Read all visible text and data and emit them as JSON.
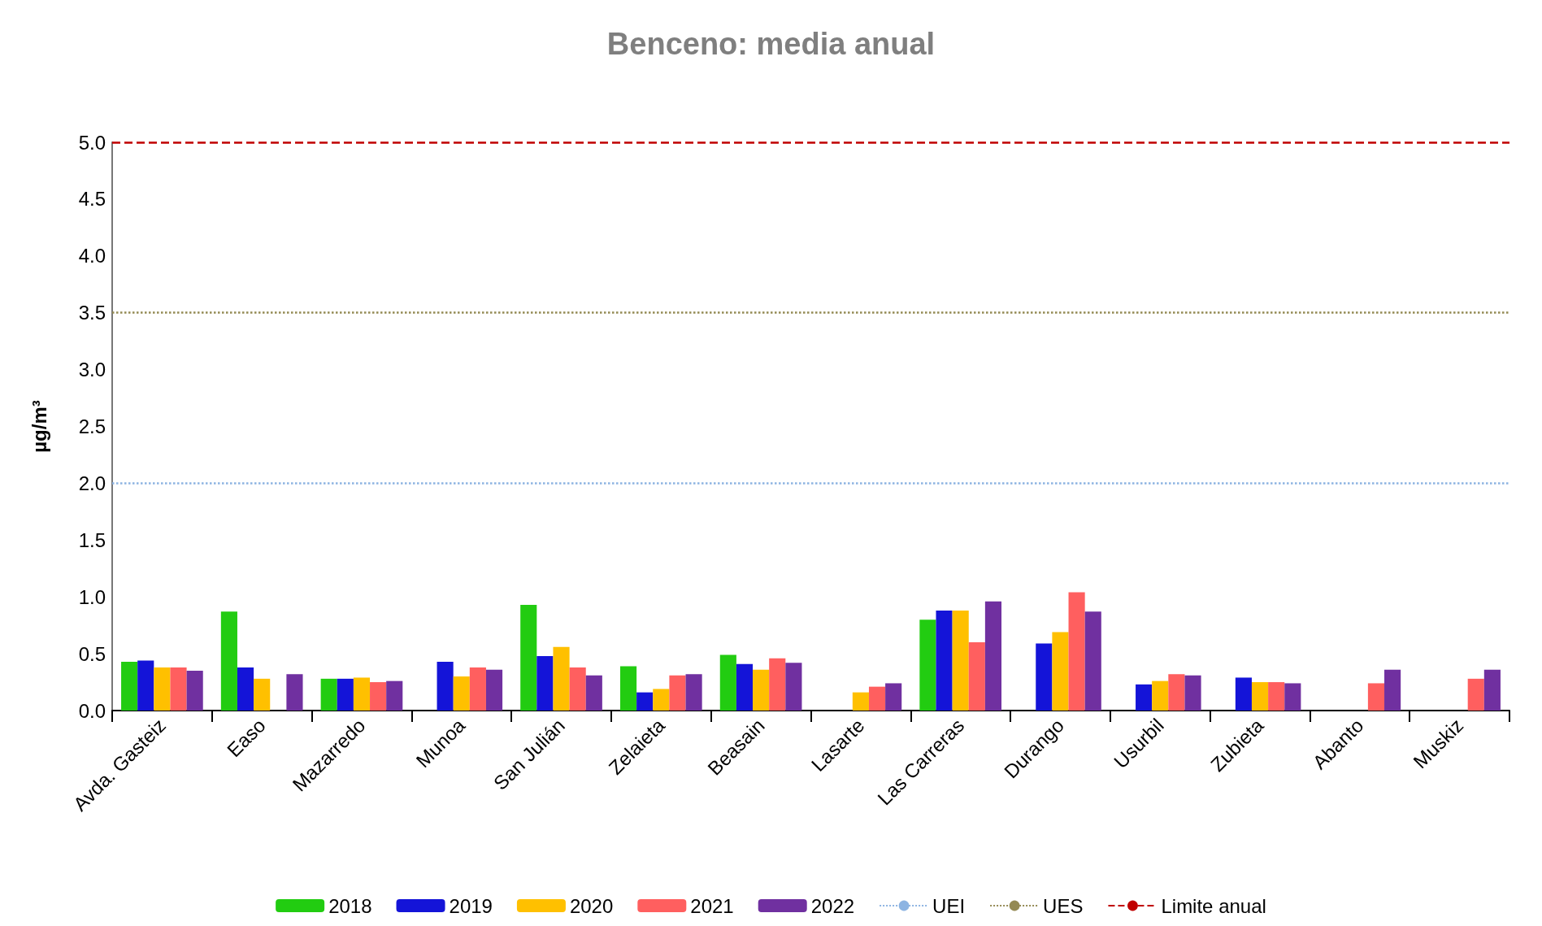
{
  "chart_data": {
    "type": "bar",
    "title": "Benceno: media anual",
    "ylabel": "µg/m³",
    "categories": [
      "Avda. Gasteiz",
      "Easo",
      "Mazarredo",
      "Munoa",
      "San Julián",
      "Zelaieta",
      "Beasain",
      "Lasarte",
      "Las Carreras",
      "Durango",
      "Usurbil",
      "Zubieta",
      "Abanto",
      "Muskiz"
    ],
    "series": [
      {
        "name": "2018",
        "color": "#22cc11",
        "values": [
          0.43,
          0.87,
          0.28,
          null,
          0.93,
          0.39,
          0.49,
          null,
          0.8,
          null,
          null,
          null,
          null,
          null
        ]
      },
      {
        "name": "2019",
        "color": "#1414d8",
        "values": [
          0.44,
          0.38,
          0.28,
          0.43,
          0.48,
          0.16,
          0.41,
          null,
          0.88,
          0.59,
          0.23,
          0.29,
          null,
          null
        ]
      },
      {
        "name": "2020",
        "color": "#ffc000",
        "values": [
          0.38,
          0.28,
          0.29,
          0.3,
          0.56,
          0.19,
          0.36,
          0.16,
          0.88,
          0.69,
          0.26,
          0.25,
          null,
          null
        ]
      },
      {
        "name": "2021",
        "color": "#ff5f5f",
        "values": [
          0.38,
          null,
          0.25,
          0.38,
          0.38,
          0.31,
          0.46,
          0.21,
          0.6,
          1.04,
          0.32,
          0.25,
          0.24,
          0.28
        ]
      },
      {
        "name": "2022",
        "color": "#7030a0",
        "values": [
          0.35,
          0.32,
          0.26,
          0.36,
          0.31,
          0.32,
          0.42,
          0.24,
          0.96,
          0.87,
          0.31,
          0.24,
          0.36,
          0.36
        ]
      }
    ],
    "ref_lines": [
      {
        "axis": "y",
        "value": 2.0,
        "label": "UEI",
        "color": "#8db4e2",
        "line_style": "dotted"
      },
      {
        "axis": "y",
        "value": 3.5,
        "label": "UES",
        "color": "#948a54",
        "line_style": "dotted"
      },
      {
        "axis": "y",
        "value": 5.0,
        "label": "Limite anual",
        "color": "#c00000",
        "line_style": "dashed"
      }
    ],
    "ylim": [
      0,
      5
    ],
    "yticks": [
      {
        "value": 0,
        "label": "0.0"
      },
      {
        "value": 0.5,
        "label": "0.5"
      },
      {
        "value": 1,
        "label": "1.0"
      },
      {
        "value": 1.5,
        "label": "1.5"
      },
      {
        "value": 2,
        "label": "2.0"
      },
      {
        "value": 2.5,
        "label": "2.5"
      },
      {
        "value": 3,
        "label": "3.0"
      },
      {
        "value": 3.5,
        "label": "3.5"
      },
      {
        "value": 4,
        "label": "4.0"
      },
      {
        "value": 4.5,
        "label": "4.5"
      },
      {
        "value": 5,
        "label": "5.0"
      }
    ],
    "grid": false,
    "legend": "bottom"
  }
}
